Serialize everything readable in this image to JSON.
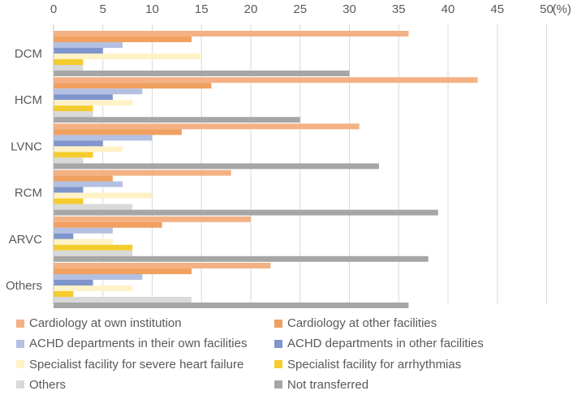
{
  "chart_data": {
    "type": "bar",
    "orientation": "horizontal",
    "title": "",
    "xlabel": "",
    "ylabel": "",
    "unit_label": "(%)",
    "xlim": [
      0,
      50
    ],
    "xticks": [
      "0",
      "5",
      "10",
      "15",
      "20",
      "25",
      "30",
      "35",
      "40",
      "45",
      "50"
    ],
    "grid": true,
    "legend_position": "bottom",
    "categories": [
      "DCM",
      "HCM",
      "LVNC",
      "RCM",
      "ARVC",
      "Others"
    ],
    "series": [
      {
        "name": "Cardiology at own institution",
        "color": "#F4B183",
        "values": [
          36,
          43,
          31,
          18,
          20,
          22
        ]
      },
      {
        "name": "Cardiology at other facilities",
        "color": "#F0A060",
        "values": [
          14,
          16,
          13,
          6,
          11,
          14
        ]
      },
      {
        "name": "ACHD departments in their own facilities",
        "color": "#B4C0E2",
        "values": [
          7,
          9,
          10,
          7,
          6,
          9
        ]
      },
      {
        "name": "ACHD departments in other facilities",
        "color": "#7F95CC",
        "values": [
          5,
          6,
          5,
          3,
          2,
          4
        ]
      },
      {
        "name": "Specialist facility for severe heart failure",
        "color": "#FFF2C6",
        "values": [
          15,
          8,
          7,
          10,
          6,
          8
        ]
      },
      {
        "name": "Specialist facility for arrhythmias",
        "color": "#F5CC2E",
        "values": [
          3,
          4,
          4,
          3,
          8,
          2
        ]
      },
      {
        "name": "Others",
        "color": "#D9D9D9",
        "values": [
          3,
          4,
          3,
          8,
          8,
          14
        ]
      },
      {
        "name": "Not transferred",
        "color": "#A6A6A6",
        "values": [
          30,
          25,
          33,
          39,
          38,
          36
        ]
      }
    ]
  }
}
